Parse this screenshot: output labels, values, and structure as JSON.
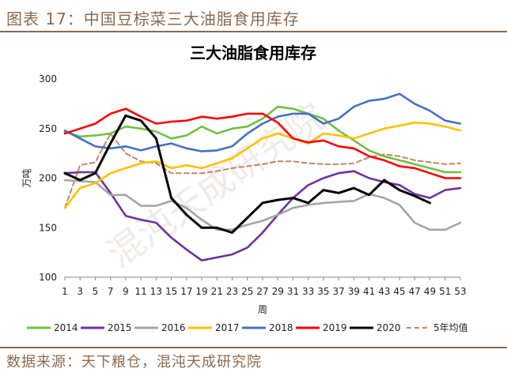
{
  "header": {
    "figure_label": "图表 17：中国豆棕菜三大油脂食用库存"
  },
  "source": {
    "text": "数据来源：天下粮仓，混沌天成研究院"
  },
  "watermark": {
    "text": "混沌天成研究院"
  },
  "chart_data": {
    "type": "line",
    "title": "三大油脂食用库存",
    "xlabel": "周",
    "ylabel": "万吨",
    "ylim": [
      100,
      300
    ],
    "xlim": [
      1,
      53
    ],
    "yticks": [
      100,
      150,
      200,
      250,
      300
    ],
    "xticks": [
      1,
      3,
      5,
      7,
      9,
      11,
      13,
      15,
      17,
      19,
      21,
      23,
      25,
      27,
      29,
      31,
      33,
      35,
      37,
      39,
      41,
      43,
      45,
      47,
      49,
      51,
      53
    ],
    "grid": false,
    "legend_position": "bottom",
    "series": [
      {
        "name": "2014",
        "color": "#70c040",
        "dashed": false,
        "x": [
          1,
          3,
          5,
          7,
          9,
          11,
          13,
          15,
          17,
          19,
          21,
          23,
          25,
          27,
          29,
          31,
          33,
          35,
          37,
          39,
          41,
          43,
          45,
          47,
          49,
          51,
          53
        ],
        "y": [
          247,
          242,
          243,
          245,
          252,
          250,
          247,
          240,
          243,
          252,
          245,
          250,
          252,
          260,
          272,
          270,
          265,
          260,
          248,
          238,
          228,
          222,
          218,
          214,
          210,
          206,
          206
        ]
      },
      {
        "name": "2015",
        "color": "#7030a0",
        "dashed": false,
        "x": [
          1,
          3,
          5,
          7,
          9,
          11,
          13,
          15,
          17,
          19,
          21,
          23,
          25,
          27,
          29,
          31,
          33,
          35,
          37,
          39,
          41,
          43,
          45,
          47,
          49,
          51,
          53
        ],
        "y": [
          205,
          206,
          206,
          185,
          162,
          158,
          155,
          140,
          128,
          117,
          120,
          123,
          130,
          145,
          163,
          180,
          193,
          200,
          205,
          207,
          200,
          196,
          193,
          184,
          180,
          188,
          190
        ]
      },
      {
        "name": "2016",
        "color": "#a5a5a5",
        "dashed": false,
        "x": [
          1,
          3,
          5,
          7,
          9,
          11,
          13,
          15,
          17,
          19,
          21,
          23,
          25,
          27,
          29,
          31,
          33,
          35,
          37,
          39,
          41,
          43,
          45,
          47,
          49,
          51,
          53
        ],
        "y": [
          198,
          197,
          196,
          183,
          183,
          172,
          172,
          177,
          170,
          158,
          148,
          148,
          153,
          157,
          163,
          170,
          173,
          175,
          176,
          177,
          184,
          180,
          173,
          155,
          148,
          148,
          155
        ]
      },
      {
        "name": "2017",
        "color": "#ffc000",
        "dashed": false,
        "x": [
          1,
          3,
          5,
          7,
          9,
          11,
          13,
          15,
          17,
          19,
          21,
          23,
          25,
          27,
          29,
          31,
          33,
          35,
          37,
          39,
          41,
          43,
          45,
          47,
          49,
          51,
          53
        ],
        "y": [
          170,
          190,
          195,
          205,
          210,
          215,
          217,
          210,
          213,
          210,
          215,
          220,
          230,
          240,
          245,
          240,
          235,
          245,
          243,
          240,
          245,
          250,
          253,
          256,
          255,
          252,
          248
        ]
      },
      {
        "name": "2018",
        "color": "#4472c4",
        "dashed": false,
        "x": [
          1,
          3,
          5,
          7,
          9,
          11,
          13,
          15,
          17,
          19,
          21,
          23,
          25,
          27,
          29,
          31,
          33,
          35,
          37,
          39,
          41,
          43,
          45,
          47,
          49,
          51,
          53
        ],
        "y": [
          248,
          240,
          232,
          230,
          232,
          228,
          232,
          235,
          230,
          227,
          228,
          232,
          245,
          255,
          262,
          265,
          265,
          255,
          260,
          272,
          278,
          280,
          285,
          275,
          268,
          258,
          255
        ]
      },
      {
        "name": "2019",
        "color": "#ff0000",
        "dashed": false,
        "x": [
          1,
          3,
          5,
          7,
          9,
          11,
          13,
          15,
          17,
          19,
          21,
          23,
          25,
          27,
          29,
          31,
          33,
          35,
          37,
          39,
          41,
          43,
          45,
          47,
          49,
          51,
          53
        ],
        "y": [
          245,
          250,
          255,
          265,
          270,
          262,
          255,
          257,
          258,
          262,
          260,
          262,
          265,
          265,
          256,
          240,
          236,
          238,
          232,
          230,
          222,
          218,
          212,
          210,
          205,
          200,
          200
        ]
      },
      {
        "name": "2020",
        "color": "#000000",
        "dashed": false,
        "x": [
          1,
          3,
          5,
          7,
          9,
          11,
          13,
          15,
          17,
          19,
          21,
          23,
          25,
          27,
          29,
          31,
          33,
          35,
          37,
          39,
          41,
          43,
          45,
          47,
          49
        ],
        "y": [
          205,
          198,
          205,
          235,
          263,
          258,
          240,
          180,
          163,
          150,
          150,
          145,
          160,
          175,
          178,
          180,
          175,
          188,
          185,
          190,
          183,
          198,
          188,
          182,
          175
        ]
      },
      {
        "name": "5年均值",
        "color": "#c0866a",
        "dashed": true,
        "x": [
          1,
          3,
          5,
          7,
          9,
          11,
          13,
          15,
          17,
          19,
          21,
          23,
          25,
          27,
          29,
          31,
          33,
          35,
          37,
          39,
          41,
          43,
          45,
          47,
          49,
          51,
          53
        ],
        "y": [
          170,
          213,
          216,
          245,
          225,
          217,
          215,
          205,
          205,
          205,
          207,
          210,
          212,
          214,
          217,
          217,
          215,
          214,
          214,
          215,
          221,
          224,
          222,
          218,
          216,
          214,
          215
        ]
      }
    ]
  }
}
